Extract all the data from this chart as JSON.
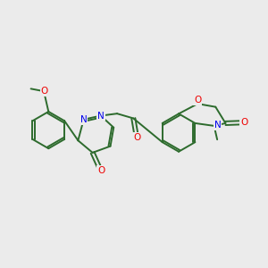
{
  "bg_color": "#ebebeb",
  "bond_color": "#2d6b2d",
  "N_color": "#0000ee",
  "O_color": "#ee0000",
  "line_width": 1.4,
  "figsize": [
    3.0,
    3.0
  ],
  "dpi": 100,
  "xlim": [
    0,
    10
  ],
  "ylim": [
    0,
    10
  ]
}
